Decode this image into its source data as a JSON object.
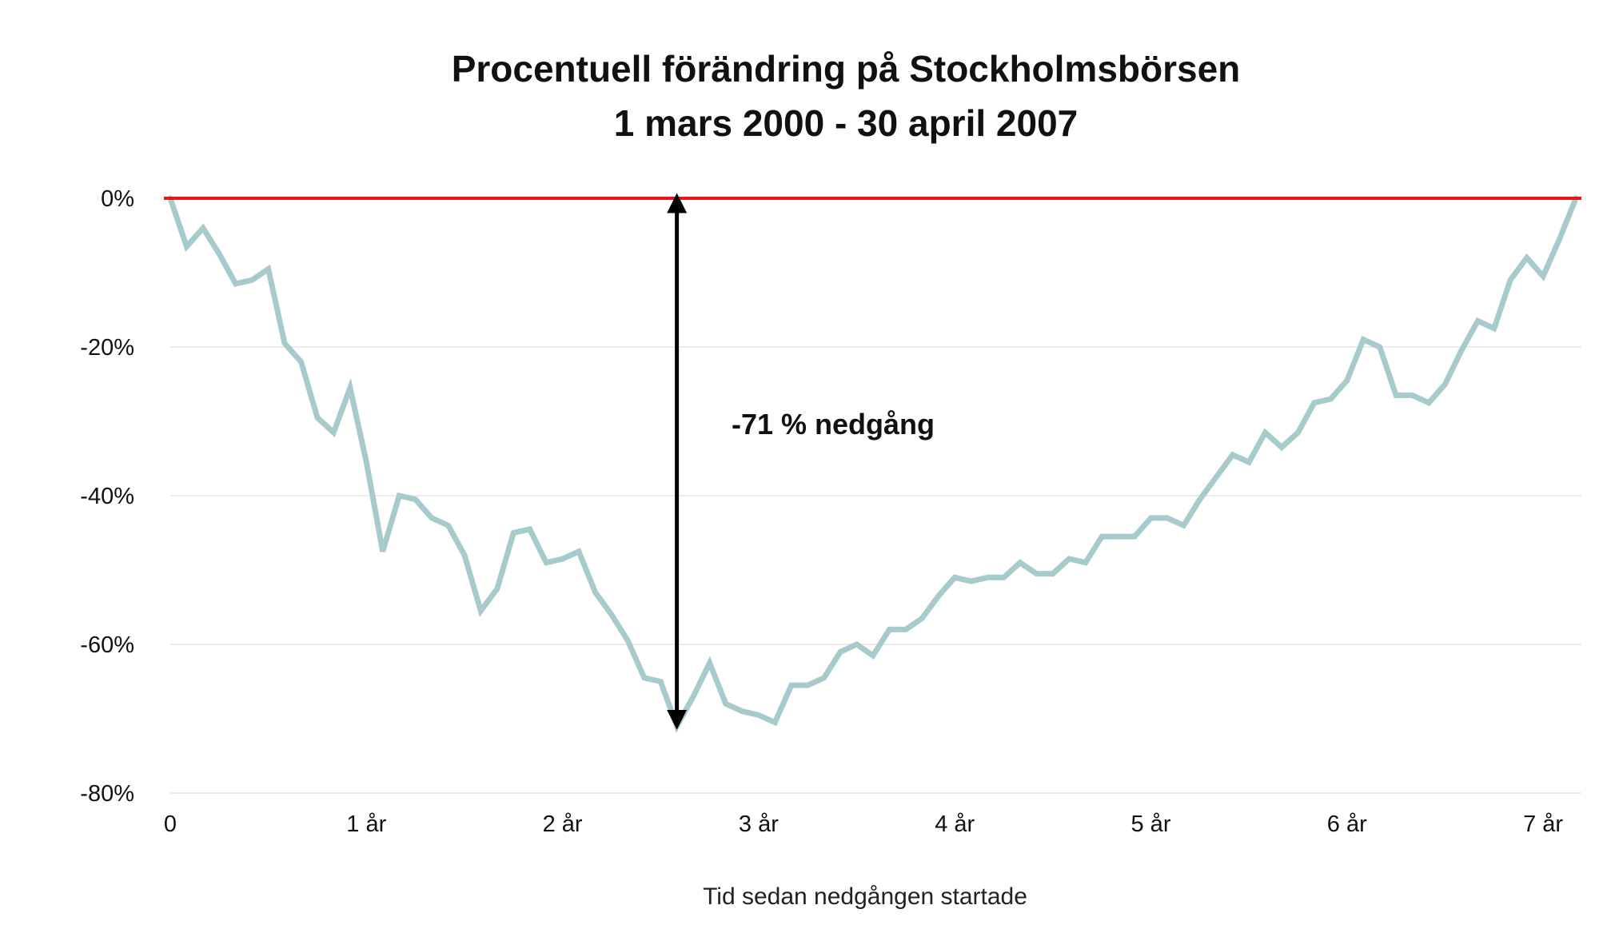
{
  "chart_data": {
    "type": "line",
    "title_line1": "Procentuell förändring på Stockholmsbörsen",
    "title_line2": "1 mars 2000 - 30 april 2007",
    "xlabel": "Tid sedan nedgången startade",
    "ylabel": "",
    "xlim": [
      0,
      7.2
    ],
    "ylim": [
      -80,
      0
    ],
    "grid": true,
    "x_ticks": [
      {
        "value": 0,
        "label": "0"
      },
      {
        "value": 1,
        "label": "1 år"
      },
      {
        "value": 2,
        "label": "2 år"
      },
      {
        "value": 3,
        "label": "3 år"
      },
      {
        "value": 4,
        "label": "4 år"
      },
      {
        "value": 5,
        "label": "5 år"
      },
      {
        "value": 6,
        "label": "6 år"
      },
      {
        "value": 7,
        "label": "7 år"
      }
    ],
    "y_ticks": [
      {
        "value": 0,
        "label": "0%"
      },
      {
        "value": -20,
        "label": "-20%"
      },
      {
        "value": -40,
        "label": "-40%"
      },
      {
        "value": -60,
        "label": "-60%"
      },
      {
        "value": -80,
        "label": "-80%"
      }
    ],
    "reference_line": {
      "y": 0,
      "color": "#e8161b"
    },
    "series": [
      {
        "color": "#a7cbcc",
        "x": [
          0,
          0.083,
          0.167,
          0.25,
          0.333,
          0.417,
          0.5,
          0.583,
          0.667,
          0.75,
          0.833,
          0.917,
          1,
          1.083,
          1.167,
          1.25,
          1.333,
          1.417,
          1.5,
          1.583,
          1.667,
          1.75,
          1.833,
          1.917,
          2,
          2.083,
          2.167,
          2.25,
          2.333,
          2.417,
          2.5,
          2.583,
          2.667,
          2.75,
          2.833,
          2.917,
          3,
          3.083,
          3.167,
          3.25,
          3.333,
          3.417,
          3.5,
          3.583,
          3.667,
          3.75,
          3.833,
          3.917,
          4,
          4.083,
          4.167,
          4.25,
          4.333,
          4.417,
          4.5,
          4.583,
          4.667,
          4.75,
          4.833,
          4.917,
          5,
          5.083,
          5.167,
          5.25,
          5.333,
          5.417,
          5.5,
          5.583,
          5.667,
          5.75,
          5.833,
          5.917,
          6,
          6.083,
          6.167,
          6.25,
          6.333,
          6.417,
          6.5,
          6.583,
          6.667,
          6.75,
          6.833,
          6.917,
          7,
          7.083,
          7.167
        ],
        "y": [
          0,
          -6.5,
          -4,
          -7.5,
          -11.5,
          -11,
          -9.5,
          -19.5,
          -22,
          -29.5,
          -31.5,
          -25.5,
          -35.5,
          -47.5,
          -40,
          -40.5,
          -43,
          -44,
          -48,
          -55.5,
          -52.5,
          -45,
          -44.5,
          -49,
          -48.5,
          -47.5,
          -53,
          -56,
          -59.5,
          -64.5,
          -65,
          -71,
          -67,
          -62.5,
          -68,
          -69,
          -69.5,
          -70.5,
          -65.5,
          -65.5,
          -64.5,
          -61,
          -60,
          -61.5,
          -58,
          -58,
          -56.5,
          -53.5,
          -51,
          -51.5,
          -51,
          -51,
          -49,
          -50.5,
          -50.5,
          -48.5,
          -49,
          -45.5,
          -45.5,
          -45.5,
          -43,
          -43,
          -44,
          -40.5,
          -37.5,
          -34.5,
          -35.5,
          -31.5,
          -33.5,
          -31.5,
          -27.5,
          -27,
          -24.5,
          -19,
          -20,
          -26.5,
          -26.5,
          -27.5,
          -25,
          -20.5,
          -16.5,
          -17.5,
          -11,
          -8,
          -10.5,
          -5.5,
          0
        ]
      }
    ],
    "annotation": {
      "label": "-71 % nedgång",
      "arrow_x": 2.583,
      "arrow_from": 0,
      "arrow_to": -71
    }
  }
}
